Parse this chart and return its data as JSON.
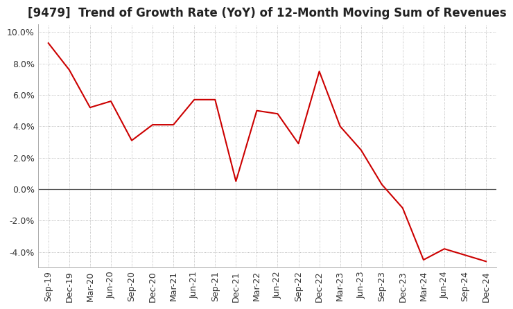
{
  "title": "[9479]  Trend of Growth Rate (YoY) of 12-Month Moving Sum of Revenues",
  "x_labels": [
    "Sep-19",
    "Dec-19",
    "Mar-20",
    "Jun-20",
    "Sep-20",
    "Dec-20",
    "Mar-21",
    "Jun-21",
    "Sep-21",
    "Dec-21",
    "Mar-22",
    "Jun-22",
    "Sep-22",
    "Dec-22",
    "Mar-23",
    "Jun-23",
    "Sep-23",
    "Dec-23",
    "Mar-24",
    "Jun-24",
    "Sep-24",
    "Dec-24"
  ],
  "y_values": [
    9.3,
    7.6,
    5.2,
    5.6,
    3.1,
    4.1,
    4.1,
    5.7,
    5.7,
    0.5,
    5.0,
    4.8,
    2.9,
    7.5,
    4.0,
    2.5,
    0.3,
    -1.2,
    -4.5,
    -3.8,
    -4.2,
    -4.6
  ],
  "line_color": "#cc0000",
  "ylim": [
    -5.0,
    10.5
  ],
  "yticks": [
    -4.0,
    -2.0,
    0.0,
    2.0,
    4.0,
    6.0,
    8.0,
    10.0
  ],
  "background_color": "#ffffff",
  "grid_color": "#aaaaaa",
  "title_fontsize": 12,
  "tick_fontsize": 9,
  "zero_line_color": "#555555"
}
